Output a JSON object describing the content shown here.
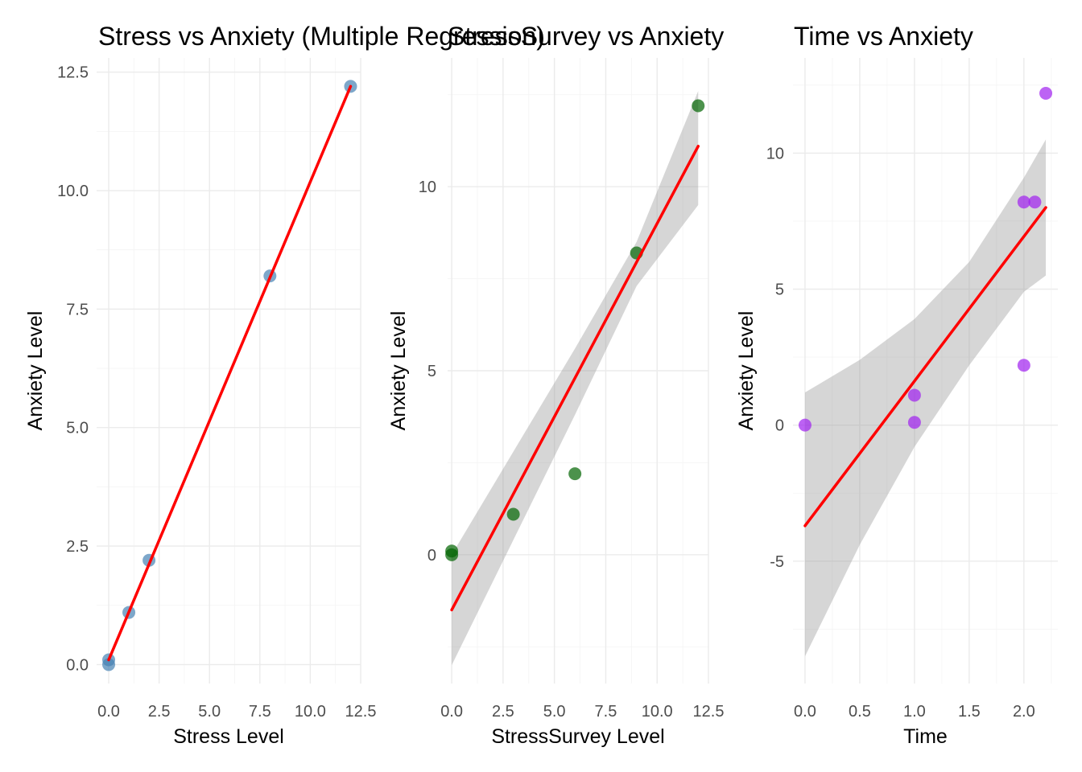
{
  "chart_data": [
    {
      "type": "scatter",
      "title": "Stress vs Anxiety (Multiple Regression)",
      "xlabel": "Stress Level",
      "ylabel": "Anxiety Level",
      "xlim": [
        -0.6,
        12.5
      ],
      "ylim": [
        -0.4,
        12.8
      ],
      "xticks": [
        0.0,
        2.5,
        5.0,
        7.5,
        10.0,
        12.5
      ],
      "xtick_labels": [
        "0.0",
        "2.5",
        "5.0",
        "7.5",
        "10.0",
        "12.5"
      ],
      "yticks": [
        0.0,
        2.5,
        5.0,
        7.5,
        10.0,
        12.5
      ],
      "ytick_labels": [
        "0.0",
        "2.5",
        "5.0",
        "7.5",
        "10.0",
        "12.5"
      ],
      "grid": true,
      "point_color": "#4682b4",
      "line_color": "#ff0000",
      "series": [
        {
          "x": [
            0,
            0,
            1,
            2,
            8,
            12
          ],
          "y": [
            0,
            0.1,
            1.1,
            2.2,
            8.2,
            12.2
          ]
        }
      ],
      "fit": {
        "x": [
          0,
          12
        ],
        "y": [
          0.1,
          12.2
        ]
      },
      "confidence_band": null
    },
    {
      "type": "scatter",
      "title": "StressSurvey vs Anxiety",
      "xlabel": "StressSurvey Level",
      "ylabel": "Anxiety Level",
      "xlim": [
        -0.2,
        12.5
      ],
      "ylim": [
        -3.5,
        13.5
      ],
      "xticks": [
        0.0,
        2.5,
        5.0,
        7.5,
        10.0,
        12.5
      ],
      "xtick_labels": [
        "0.0",
        "2.5",
        "5.0",
        "7.5",
        "10.0",
        "12.5"
      ],
      "yticks": [
        0,
        5,
        10
      ],
      "ytick_labels": [
        "0",
        "5",
        "10"
      ],
      "grid": true,
      "point_color": "#006400",
      "line_color": "#ff0000",
      "series": [
        {
          "x": [
            0,
            0,
            3,
            6,
            9,
            12
          ],
          "y": [
            0,
            0.1,
            1.1,
            2.2,
            8.2,
            12.2
          ]
        }
      ],
      "fit": {
        "x": [
          0,
          12
        ],
        "y": [
          -1.5,
          11.1
        ]
      },
      "confidence_band": {
        "x": [
          0,
          3,
          6,
          9,
          12
        ],
        "lower": [
          -3.0,
          0.4,
          3.8,
          7.3,
          9.5
        ],
        "upper": [
          0.0,
          2.8,
          5.6,
          8.5,
          12.6
        ]
      }
    },
    {
      "type": "scatter",
      "title": "Time vs Anxiety",
      "xlabel": "Time",
      "ylabel": "Anxiety Level",
      "xlim": [
        -0.11,
        2.31
      ],
      "ylim": [
        -9.5,
        13.5
      ],
      "xticks": [
        0.0,
        0.5,
        1.0,
        1.5,
        2.0
      ],
      "xtick_labels": [
        "0.0",
        "0.5",
        "1.0",
        "1.5",
        "2.0"
      ],
      "yticks": [
        -5,
        0,
        5,
        10
      ],
      "ytick_labels": [
        "-5",
        "0",
        "5",
        "10"
      ],
      "grid": true,
      "point_color": "#a020f0",
      "line_color": "#ff0000",
      "series": [
        {
          "x": [
            0,
            1,
            1,
            2,
            2,
            2.1,
            2.2
          ],
          "y": [
            0,
            0.1,
            1.1,
            2.2,
            8.2,
            8.2,
            12.2
          ]
        }
      ],
      "fit": {
        "x": [
          0,
          2.2
        ],
        "y": [
          -3.7,
          8.0
        ]
      },
      "confidence_band": {
        "x": [
          0,
          0.5,
          1.0,
          1.5,
          2.0,
          2.2
        ],
        "lower": [
          -8.5,
          -4.4,
          -0.8,
          2.2,
          4.9,
          5.5
        ],
        "upper": [
          1.2,
          2.4,
          3.9,
          6.0,
          9.1,
          10.5
        ]
      }
    }
  ]
}
